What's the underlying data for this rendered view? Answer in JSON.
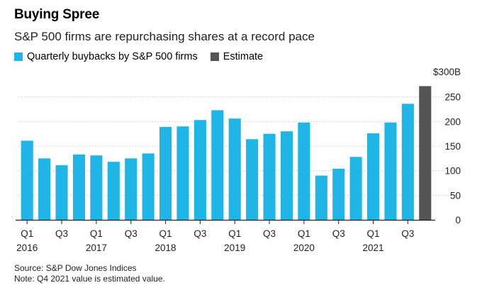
{
  "chart_data": {
    "type": "bar",
    "title": "Buying Spree",
    "subtitle": "S&P 500 firms are repurchasing shares at a record pace",
    "legend": [
      {
        "label": "Quarterly buybacks by S&P 500 firms",
        "color": "#1fb5e6"
      },
      {
        "label": "Estimate",
        "color": "#555555"
      }
    ],
    "y_unit_label": "$300B",
    "ylim": [
      0,
      300
    ],
    "yticks": [
      0,
      50,
      100,
      150,
      200,
      250
    ],
    "categories": [
      "Q1 2016",
      "Q2 2016",
      "Q3 2016",
      "Q4 2016",
      "Q1 2017",
      "Q2 2017",
      "Q3 2017",
      "Q4 2017",
      "Q1 2018",
      "Q2 2018",
      "Q3 2018",
      "Q4 2018",
      "Q1 2019",
      "Q2 2019",
      "Q3 2019",
      "Q4 2019",
      "Q1 2020",
      "Q2 2020",
      "Q3 2020",
      "Q4 2020",
      "Q1 2021",
      "Q2 2021",
      "Q3 2021",
      "Q4 2021"
    ],
    "values": [
      161,
      125,
      111,
      133,
      131,
      118,
      125,
      135,
      189,
      190,
      203,
      223,
      206,
      164,
      175,
      180,
      198,
      90,
      104,
      128,
      176,
      198,
      236,
      272
    ],
    "estimate_flags": [
      false,
      false,
      false,
      false,
      false,
      false,
      false,
      false,
      false,
      false,
      false,
      false,
      false,
      false,
      false,
      false,
      false,
      false,
      false,
      false,
      false,
      false,
      false,
      true
    ],
    "x_tick_labels": [
      {
        "index": 0,
        "quarter": "Q1",
        "year": "2016"
      },
      {
        "index": 2,
        "quarter": "Q3",
        "year": ""
      },
      {
        "index": 4,
        "quarter": "Q1",
        "year": "2017"
      },
      {
        "index": 6,
        "quarter": "Q3",
        "year": ""
      },
      {
        "index": 8,
        "quarter": "Q1",
        "year": "2018"
      },
      {
        "index": 10,
        "quarter": "Q3",
        "year": ""
      },
      {
        "index": 12,
        "quarter": "Q1",
        "year": "2019"
      },
      {
        "index": 14,
        "quarter": "Q3",
        "year": ""
      },
      {
        "index": 16,
        "quarter": "Q1",
        "year": "2020"
      },
      {
        "index": 18,
        "quarter": "Q3",
        "year": ""
      },
      {
        "index": 20,
        "quarter": "Q1",
        "year": "2021"
      },
      {
        "index": 22,
        "quarter": "Q3",
        "year": ""
      }
    ],
    "colors": {
      "actual": "#1fb5e6",
      "estimate": "#555555",
      "grid": "#c8c8c8",
      "axis": "#222222"
    }
  },
  "source": "Source: S&P Dow Jones Indices",
  "note": "Note: Q4 2021 value is estimated value."
}
